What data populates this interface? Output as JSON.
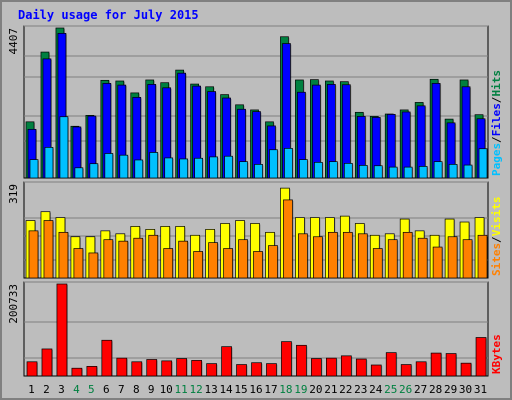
{
  "title": "Daily usage for July 2015",
  "colors": {
    "background": "#bdbdbd",
    "title": "#0000ff",
    "hits": "#008040",
    "files": "#0000ff",
    "pages": "#00c0ff",
    "visits": "#ffff00",
    "sites": "#ff8000",
    "kbytes": "#ff0000",
    "weekend_label": "#008040",
    "gridline": "#808080"
  },
  "chart_data": [
    {
      "type": "bar",
      "name": "hits-files-pages",
      "y_max_label": "4407",
      "ylim": [
        0,
        4407
      ],
      "legend": [
        "Pages",
        "Files",
        "Hits"
      ],
      "categories": [
        "1",
        "2",
        "3",
        "4",
        "5",
        "6",
        "7",
        "8",
        "9",
        "10",
        "11",
        "12",
        "13",
        "14",
        "15",
        "16",
        "17",
        "18",
        "19",
        "20",
        "21",
        "22",
        "23",
        "24",
        "25",
        "26",
        "27",
        "28",
        "29",
        "30",
        "31"
      ],
      "series": [
        {
          "name": "Hits",
          "values": [
            1650,
            3700,
            4407,
            1520,
            1840,
            2870,
            2850,
            2500,
            2880,
            2800,
            3170,
            2760,
            2680,
            2450,
            2150,
            2000,
            1650,
            4150,
            2880,
            2890,
            2850,
            2830,
            1930,
            1810,
            1880,
            2000,
            2220,
            2900,
            1730,
            2880,
            1860
          ]
        },
        {
          "name": "Files",
          "values": [
            1430,
            3500,
            4250,
            1500,
            1820,
            2780,
            2730,
            2370,
            2750,
            2650,
            3080,
            2700,
            2540,
            2350,
            2020,
            1950,
            1530,
            3950,
            2520,
            2730,
            2750,
            2740,
            1810,
            1780,
            1870,
            1940,
            2120,
            2780,
            1620,
            2680,
            1740
          ]
        },
        {
          "name": "Pages",
          "values": [
            540,
            900,
            1800,
            300,
            420,
            720,
            670,
            530,
            750,
            590,
            560,
            580,
            620,
            640,
            480,
            400,
            830,
            870,
            540,
            460,
            480,
            430,
            370,
            360,
            320,
            320,
            340,
            480,
            400,
            380,
            860
          ]
        }
      ]
    },
    {
      "type": "bar",
      "name": "visits-sites",
      "y_max_label": "319",
      "ylim": [
        0,
        319
      ],
      "legend": [
        "Sites",
        "Visits"
      ],
      "categories": [
        "1",
        "2",
        "3",
        "4",
        "5",
        "6",
        "7",
        "8",
        "9",
        "10",
        "11",
        "12",
        "13",
        "14",
        "15",
        "16",
        "17",
        "18",
        "19",
        "20",
        "21",
        "22",
        "23",
        "24",
        "25",
        "26",
        "27",
        "28",
        "29",
        "30",
        "31"
      ],
      "series": [
        {
          "name": "Visits",
          "values": [
            195,
            225,
            205,
            140,
            140,
            160,
            150,
            175,
            165,
            175,
            175,
            145,
            165,
            185,
            195,
            185,
            155,
            305,
            205,
            205,
            205,
            210,
            185,
            145,
            150,
            200,
            160,
            145,
            200,
            190,
            205
          ]
        },
        {
          "name": "Sites",
          "values": [
            160,
            195,
            155,
            100,
            85,
            130,
            125,
            135,
            145,
            100,
            125,
            90,
            120,
            100,
            130,
            90,
            110,
            265,
            150,
            140,
            155,
            155,
            150,
            100,
            130,
            155,
            135,
            105,
            140,
            130,
            145
          ]
        }
      ]
    },
    {
      "type": "bar",
      "name": "kbytes",
      "y_max_label": "200733",
      "ylim": [
        0,
        200733
      ],
      "legend": [
        "KBytes"
      ],
      "categories": [
        "1",
        "2",
        "3",
        "4",
        "5",
        "6",
        "7",
        "8",
        "9",
        "10",
        "11",
        "12",
        "13",
        "14",
        "15",
        "16",
        "17",
        "18",
        "19",
        "20",
        "21",
        "22",
        "23",
        "24",
        "25",
        "26",
        "27",
        "28",
        "29",
        "30",
        "31"
      ],
      "series": [
        {
          "name": "KBytes",
          "values": [
            31000,
            59000,
            200733,
            17000,
            21000,
            78000,
            39000,
            31000,
            36000,
            33000,
            38000,
            34000,
            27000,
            64000,
            25000,
            29000,
            27000,
            75000,
            67000,
            38000,
            39000,
            44000,
            37000,
            24000,
            51000,
            25000,
            31000,
            50000,
            49000,
            28000,
            84000
          ]
        }
      ]
    }
  ],
  "x_labels": [
    "1",
    "2",
    "3",
    "4",
    "5",
    "6",
    "7",
    "8",
    "9",
    "10",
    "11",
    "12",
    "13",
    "14",
    "15",
    "16",
    "17",
    "18",
    "19",
    "20",
    "21",
    "22",
    "23",
    "24",
    "25",
    "26",
    "27",
    "28",
    "29",
    "30",
    "31"
  ],
  "weekend_days": [
    "4",
    "5",
    "11",
    "12",
    "18",
    "19",
    "25",
    "26"
  ]
}
